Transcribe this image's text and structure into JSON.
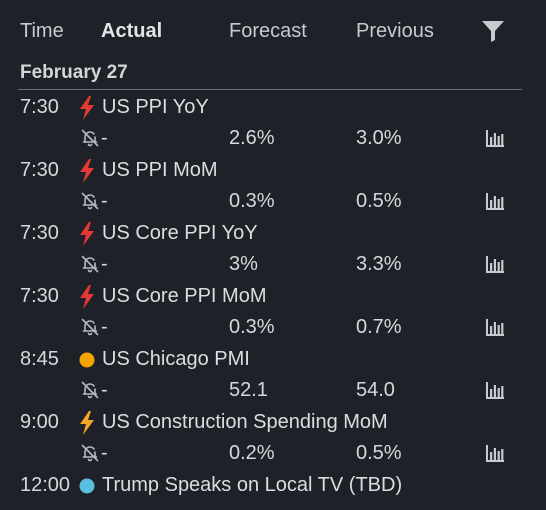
{
  "header": {
    "time": "Time",
    "actual": "Actual",
    "forecast": "Forecast",
    "previous": "Previous",
    "filter_icon": "filter-icon"
  },
  "date": "February 27",
  "colors": {
    "high": "#e53935",
    "medium_lightning": "#f5a623",
    "medium_dot": "#f5a300",
    "low_dot": "#5bc0de",
    "background": "#1f2128"
  },
  "events": [
    {
      "time": "7:30",
      "importance": "high-lightning",
      "name": "US PPI YoY",
      "actual": "-",
      "forecast": "2.6%",
      "previous": "3.0%"
    },
    {
      "time": "7:30",
      "importance": "high-lightning",
      "name": "US PPI MoM",
      "actual": "-",
      "forecast": "0.3%",
      "previous": "0.5%"
    },
    {
      "time": "7:30",
      "importance": "high-lightning",
      "name": "US Core PPI YoY",
      "actual": "-",
      "forecast": "3%",
      "previous": "3.3%"
    },
    {
      "time": "7:30",
      "importance": "high-lightning",
      "name": "US Core PPI MoM",
      "actual": "-",
      "forecast": "0.3%",
      "previous": "0.7%"
    },
    {
      "time": "8:45",
      "importance": "medium-dot",
      "name": "US Chicago PMI",
      "actual": "-",
      "forecast": "52.1",
      "previous": "54.0"
    },
    {
      "time": "9:00",
      "importance": "medium-lightning",
      "name": "US Construction Spending MoM",
      "actual": "-",
      "forecast": "0.2%",
      "previous": "0.5%"
    },
    {
      "time": "12:00",
      "importance": "low-dot",
      "name": "Trump Speaks on Local TV (TBD)"
    }
  ]
}
